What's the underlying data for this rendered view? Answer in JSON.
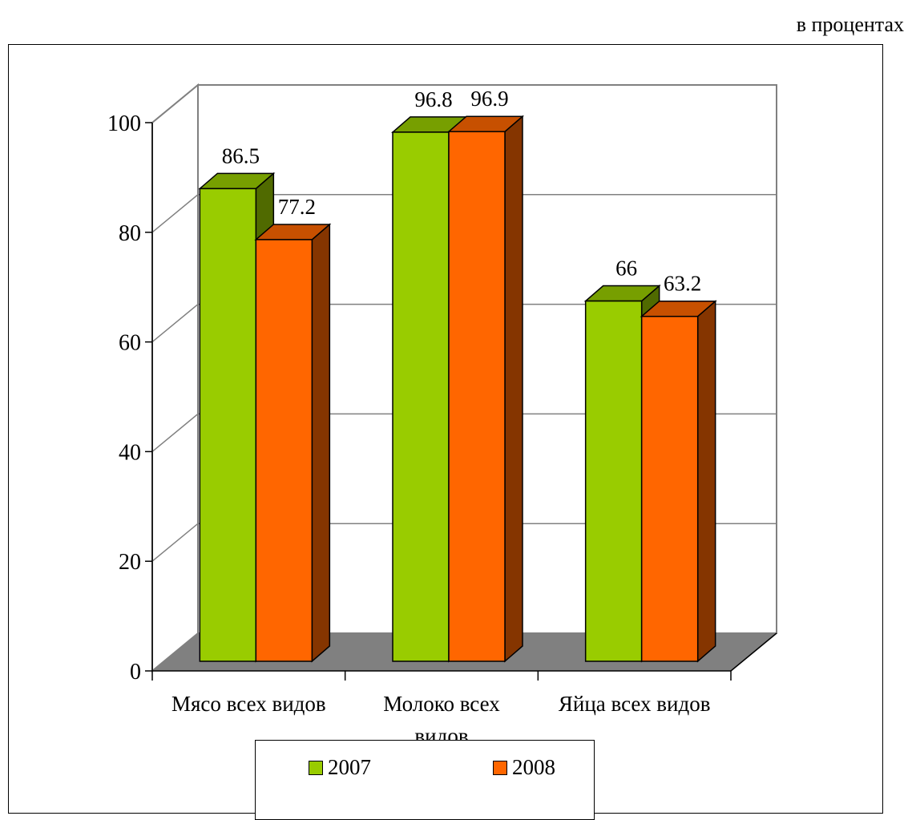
{
  "unit_note": "в процентах",
  "chart_data": {
    "type": "bar",
    "categories": [
      "Мясо всех видов",
      "Молоко всех видов",
      "Яйца всех видов"
    ],
    "category_lines": [
      [
        "Мясо всех видов"
      ],
      [
        "Молоко всех",
        "видов"
      ],
      [
        "Яйца всех видов"
      ]
    ],
    "series": [
      {
        "name": "2007",
        "values": [
          86.5,
          96.8,
          66
        ],
        "labels": [
          "86.5",
          "96.8",
          "66"
        ],
        "color": "#99CC00"
      },
      {
        "name": "2008",
        "values": [
          77.2,
          96.9,
          63.2
        ],
        "labels": [
          "77.2",
          "96.9",
          "63.2"
        ],
        "color": "#FF6600"
      }
    ],
    "ylim": [
      0,
      100
    ],
    "yticks": [
      0,
      20,
      40,
      60,
      80,
      100
    ],
    "ytick_labels": [
      "0",
      "20",
      "40",
      "60",
      "80",
      "100"
    ],
    "grid": true,
    "legend": "bottom",
    "three_d": true
  }
}
